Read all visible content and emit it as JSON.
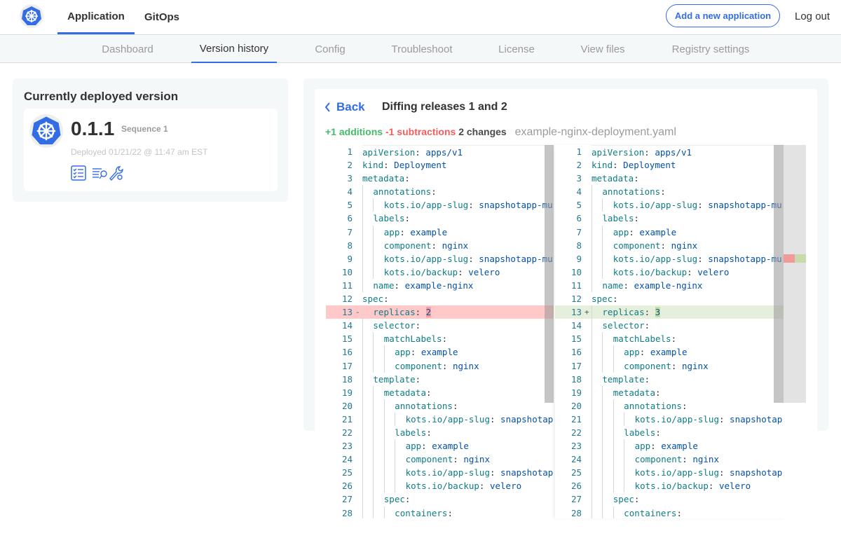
{
  "header": {
    "logo": "kubernetes-helm-logo",
    "nav": [
      {
        "label": "Application",
        "active": true
      },
      {
        "label": "GitOps",
        "active": false
      }
    ],
    "add_button": "Add a new application",
    "logout": "Log out"
  },
  "subnav": {
    "tabs": [
      {
        "label": "Dashboard"
      },
      {
        "label": "Version history",
        "active": true
      },
      {
        "label": "Config"
      },
      {
        "label": "Troubleshoot"
      },
      {
        "label": "License"
      },
      {
        "label": "View files"
      },
      {
        "label": "Registry settings"
      }
    ]
  },
  "deployed": {
    "title": "Currently deployed version",
    "version": "0.1.1",
    "sequence": "Sequence 1",
    "deployed_at": "Deployed 01/21/22 @ 11:47 am EST",
    "icons": [
      "checklist-icon",
      "logs-search-icon",
      "wrench-gear-icon"
    ]
  },
  "diff": {
    "back": "Back",
    "title": "Diffing releases 1 and 2",
    "additions": "+1 additions",
    "subtractions": "-1 subtractions",
    "changes": "2 changes",
    "filename": "example-nginx-deployment.yaml",
    "colors": {
      "accent": "#326de6",
      "added": "#44bb66",
      "removed": "#f65c5c",
      "key": "#0e7c86",
      "value": "#0451a5"
    },
    "left": [
      [
        0,
        "apiVersion",
        "apps/v1"
      ],
      [
        0,
        "kind",
        "Deployment"
      ],
      [
        0,
        "metadata",
        ""
      ],
      [
        1,
        "annotations",
        ""
      ],
      [
        2,
        "kots.io/app-slug",
        "snapshotapp-mu"
      ],
      [
        1,
        "labels",
        ""
      ],
      [
        2,
        "app",
        "example"
      ],
      [
        2,
        "component",
        "nginx"
      ],
      [
        2,
        "kots.io/app-slug",
        "snapshotapp-mu"
      ],
      [
        2,
        "kots.io/backup",
        "velero"
      ],
      [
        1,
        "name",
        "example-nginx"
      ],
      [
        0,
        "spec",
        ""
      ],
      [
        1,
        "replicas",
        "2",
        "del"
      ],
      [
        1,
        "selector",
        ""
      ],
      [
        2,
        "matchLabels",
        ""
      ],
      [
        3,
        "app",
        "example"
      ],
      [
        3,
        "component",
        "nginx"
      ],
      [
        1,
        "template",
        ""
      ],
      [
        2,
        "metadata",
        ""
      ],
      [
        3,
        "annotations",
        ""
      ],
      [
        4,
        "kots.io/app-slug",
        "snapshotap"
      ],
      [
        3,
        "labels",
        ""
      ],
      [
        4,
        "app",
        "example"
      ],
      [
        4,
        "component",
        "nginx"
      ],
      [
        4,
        "kots.io/app-slug",
        "snapshotap"
      ],
      [
        4,
        "kots.io/backup",
        "velero"
      ],
      [
        2,
        "spec",
        ""
      ],
      [
        3,
        "containers",
        ""
      ]
    ],
    "right": [
      [
        0,
        "apiVersion",
        "apps/v1"
      ],
      [
        0,
        "kind",
        "Deployment"
      ],
      [
        0,
        "metadata",
        ""
      ],
      [
        1,
        "annotations",
        ""
      ],
      [
        2,
        "kots.io/app-slug",
        "snapshotapp-mu"
      ],
      [
        1,
        "labels",
        ""
      ],
      [
        2,
        "app",
        "example"
      ],
      [
        2,
        "component",
        "nginx"
      ],
      [
        2,
        "kots.io/app-slug",
        "snapshotapp-mu"
      ],
      [
        2,
        "kots.io/backup",
        "velero"
      ],
      [
        1,
        "name",
        "example-nginx"
      ],
      [
        0,
        "spec",
        ""
      ],
      [
        1,
        "replicas",
        "3",
        "ins"
      ],
      [
        1,
        "selector",
        ""
      ],
      [
        2,
        "matchLabels",
        ""
      ],
      [
        3,
        "app",
        "example"
      ],
      [
        3,
        "component",
        "nginx"
      ],
      [
        1,
        "template",
        ""
      ],
      [
        2,
        "metadata",
        ""
      ],
      [
        3,
        "annotations",
        ""
      ],
      [
        4,
        "kots.io/app-slug",
        "snapshotap"
      ],
      [
        3,
        "labels",
        ""
      ],
      [
        4,
        "app",
        "example"
      ],
      [
        4,
        "component",
        "nginx"
      ],
      [
        4,
        "kots.io/app-slug",
        "snapshotap"
      ],
      [
        4,
        "kots.io/backup",
        "velero"
      ],
      [
        2,
        "spec",
        ""
      ],
      [
        3,
        "containers",
        ""
      ]
    ]
  }
}
